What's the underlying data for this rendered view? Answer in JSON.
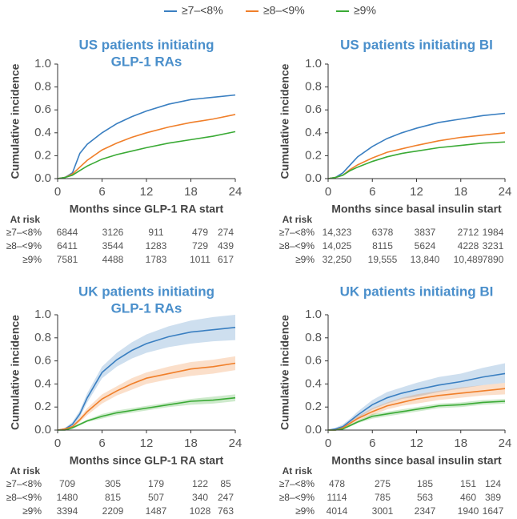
{
  "chart_data": [
    {
      "type": "line",
      "title": [
        "US patients initiating",
        "GLP-1 RAs"
      ],
      "xlabel": "Months since GLP-1 RA start",
      "ylabel": "Cumulative incidence",
      "x": [
        0,
        1,
        2,
        3,
        4,
        6,
        8,
        10,
        12,
        15,
        18,
        21,
        24
      ],
      "xlim": [
        0,
        24
      ],
      "ylim": [
        0,
        1
      ],
      "xticks": [
        0,
        6,
        12,
        18,
        24
      ],
      "yticks": [
        {
          "value": 0,
          "label": "0.0"
        },
        0.2,
        0.4,
        0.6,
        0.8,
        {
          "value": 1,
          "label": "1.0"
        }
      ],
      "series": [
        {
          "name": "≥7–<8%",
          "color": "#3a7fc1",
          "values": [
            0,
            0.01,
            0.05,
            0.22,
            0.3,
            0.4,
            0.48,
            0.54,
            0.59,
            0.65,
            0.69,
            0.71,
            0.73
          ]
        },
        {
          "name": "≥8–<9%",
          "color": "#f07f2a",
          "values": [
            0,
            0.01,
            0.04,
            0.1,
            0.16,
            0.25,
            0.31,
            0.36,
            0.4,
            0.45,
            0.49,
            0.52,
            0.56
          ]
        },
        {
          "name": "≥9%",
          "color": "#3aaa35",
          "values": [
            0,
            0.01,
            0.03,
            0.07,
            0.11,
            0.17,
            0.21,
            0.24,
            0.27,
            0.31,
            0.34,
            0.37,
            0.41
          ]
        }
      ],
      "at_risk_label": "At risk",
      "at_risk": [
        [
          6844,
          3126,
          911,
          479,
          274
        ],
        [
          6411,
          3544,
          1283,
          729,
          439
        ],
        [
          7581,
          4488,
          1783,
          1011,
          617
        ]
      ]
    },
    {
      "type": "line",
      "title": [
        "US patients initiating BI"
      ],
      "xlabel": "Months since basal insulin start",
      "ylabel": "Cumulative incidence",
      "x": [
        0,
        1,
        2,
        3,
        4,
        6,
        8,
        10,
        12,
        15,
        18,
        21,
        24
      ],
      "xlim": [
        0,
        24
      ],
      "ylim": [
        0,
        1
      ],
      "xticks": [
        0,
        6,
        12,
        18,
        24
      ],
      "yticks": [
        {
          "value": 0,
          "label": "0.0"
        },
        0.2,
        0.4,
        0.6,
        0.8,
        {
          "value": 1,
          "label": "1.0"
        }
      ],
      "series": [
        {
          "name": "≥7–<8%",
          "color": "#3a7fc1",
          "values": [
            0,
            0.01,
            0.05,
            0.12,
            0.19,
            0.28,
            0.35,
            0.4,
            0.44,
            0.49,
            0.52,
            0.55,
            0.57
          ]
        },
        {
          "name": "≥8–<9%",
          "color": "#f07f2a",
          "values": [
            0,
            0.01,
            0.03,
            0.08,
            0.12,
            0.18,
            0.23,
            0.26,
            0.29,
            0.33,
            0.36,
            0.38,
            0.4
          ]
        },
        {
          "name": "≥9%",
          "color": "#3aaa35",
          "values": [
            0,
            0.01,
            0.03,
            0.07,
            0.1,
            0.15,
            0.19,
            0.22,
            0.24,
            0.27,
            0.29,
            0.31,
            0.32
          ]
        }
      ],
      "at_risk_label": "At risk",
      "at_risk": [
        [
          14323,
          6378,
          3837,
          2712,
          1984
        ],
        [
          14025,
          8115,
          5624,
          4228,
          3231
        ],
        [
          32250,
          19555,
          13840,
          10489,
          7890
        ]
      ],
      "at_risk_labels": [
        [
          "14,323",
          "6378",
          "3837",
          "2712",
          "1984"
        ],
        [
          "14,025",
          "8115",
          "5624",
          "4228",
          "3231"
        ],
        [
          "32,250",
          "19,555",
          "13,840",
          "10,489",
          "7890"
        ]
      ]
    },
    {
      "type": "line",
      "title": [
        "UK patients initiating",
        "GLP-1 RAs"
      ],
      "xlabel": "Months since GLP-1 RA start",
      "ylabel": "Cumulative incidence",
      "x": [
        0,
        1,
        2,
        3,
        4,
        6,
        8,
        10,
        12,
        15,
        18,
        21,
        24
      ],
      "xlim": [
        0,
        24
      ],
      "ylim": [
        0,
        1
      ],
      "xticks": [
        0,
        6,
        12,
        18,
        24
      ],
      "yticks": [
        {
          "value": 0,
          "label": "0.0"
        },
        0.2,
        0.4,
        0.6,
        0.8,
        {
          "value": 1,
          "label": "1.0"
        }
      ],
      "series": [
        {
          "name": "≥7–<8%",
          "color": "#3a7fc1",
          "values": [
            0,
            0.01,
            0.05,
            0.14,
            0.28,
            0.5,
            0.61,
            0.69,
            0.75,
            0.81,
            0.85,
            0.87,
            0.89
          ],
          "lower": [
            0,
            0,
            0.03,
            0.11,
            0.24,
            0.45,
            0.55,
            0.62,
            0.67,
            0.72,
            0.75,
            0.77,
            0.78
          ],
          "upper": [
            0,
            0.02,
            0.07,
            0.17,
            0.32,
            0.55,
            0.67,
            0.76,
            0.83,
            0.9,
            0.95,
            0.98,
            1
          ]
        },
        {
          "name": "≥8–<9%",
          "color": "#f07f2a",
          "values": [
            0,
            0.01,
            0.03,
            0.09,
            0.16,
            0.27,
            0.34,
            0.4,
            0.45,
            0.49,
            0.53,
            0.55,
            0.58
          ],
          "lower": [
            0,
            0,
            0.02,
            0.07,
            0.13,
            0.23,
            0.3,
            0.35,
            0.4,
            0.44,
            0.47,
            0.49,
            0.52
          ],
          "upper": [
            0,
            0.02,
            0.04,
            0.11,
            0.19,
            0.31,
            0.38,
            0.45,
            0.5,
            0.55,
            0.59,
            0.61,
            0.64
          ]
        },
        {
          "name": "≥9%",
          "color": "#3aaa35",
          "values": [
            0,
            0,
            0.02,
            0.05,
            0.08,
            0.12,
            0.15,
            0.17,
            0.19,
            0.22,
            0.25,
            0.26,
            0.28
          ],
          "lower": [
            0,
            0,
            0.01,
            0.04,
            0.07,
            0.1,
            0.13,
            0.15,
            0.17,
            0.2,
            0.22,
            0.23,
            0.25
          ],
          "upper": [
            0,
            0.01,
            0.03,
            0.06,
            0.09,
            0.14,
            0.17,
            0.19,
            0.21,
            0.24,
            0.27,
            0.29,
            0.31
          ]
        }
      ],
      "at_risk_label": "At risk",
      "at_risk": [
        [
          709,
          305,
          179,
          122,
          85
        ],
        [
          1480,
          815,
          507,
          340,
          247
        ],
        [
          3394,
          2209,
          1487,
          1028,
          763
        ]
      ]
    },
    {
      "type": "line",
      "title": [
        "UK patients initiating BI"
      ],
      "xlabel": "Months since basal insulin start",
      "ylabel": "Cumulative incidence",
      "x": [
        0,
        1,
        2,
        3,
        4,
        6,
        8,
        10,
        12,
        15,
        18,
        21,
        24
      ],
      "xlim": [
        0,
        24
      ],
      "ylim": [
        0,
        1
      ],
      "xticks": [
        0,
        6,
        12,
        18,
        24
      ],
      "yticks": [
        {
          "value": 0,
          "label": "0.0"
        },
        0.2,
        0.4,
        0.6,
        0.8,
        {
          "value": 1,
          "label": "1.0"
        }
      ],
      "series": [
        {
          "name": "≥7–<8%",
          "color": "#3a7fc1",
          "values": [
            0,
            0.01,
            0.03,
            0.08,
            0.13,
            0.22,
            0.28,
            0.32,
            0.35,
            0.39,
            0.42,
            0.46,
            0.49
          ],
          "lower": [
            0,
            0,
            0.02,
            0.06,
            0.1,
            0.18,
            0.23,
            0.27,
            0.29,
            0.33,
            0.36,
            0.39,
            0.41
          ],
          "upper": [
            0,
            0.02,
            0.05,
            0.1,
            0.16,
            0.26,
            0.33,
            0.37,
            0.41,
            0.46,
            0.49,
            0.54,
            0.58
          ]
        },
        {
          "name": "≥8–<9%",
          "color": "#f07f2a",
          "values": [
            0,
            0,
            0.02,
            0.06,
            0.1,
            0.16,
            0.21,
            0.24,
            0.27,
            0.3,
            0.32,
            0.34,
            0.36
          ],
          "lower": [
            0,
            0,
            0.01,
            0.04,
            0.08,
            0.13,
            0.18,
            0.21,
            0.23,
            0.26,
            0.28,
            0.3,
            0.31
          ],
          "upper": [
            0,
            0.01,
            0.03,
            0.08,
            0.12,
            0.19,
            0.24,
            0.28,
            0.31,
            0.34,
            0.37,
            0.39,
            0.41
          ]
        },
        {
          "name": "≥9%",
          "color": "#3aaa35",
          "values": [
            0,
            0,
            0.01,
            0.04,
            0.07,
            0.12,
            0.14,
            0.16,
            0.18,
            0.21,
            0.22,
            0.24,
            0.25
          ],
          "lower": [
            0,
            0,
            0.01,
            0.03,
            0.06,
            0.1,
            0.12,
            0.14,
            0.16,
            0.19,
            0.2,
            0.22,
            0.23
          ],
          "upper": [
            0,
            0.01,
            0.02,
            0.05,
            0.08,
            0.14,
            0.16,
            0.18,
            0.2,
            0.23,
            0.24,
            0.26,
            0.27
          ]
        }
      ],
      "at_risk_label": "At risk",
      "at_risk": [
        [
          478,
          275,
          185,
          151,
          124
        ],
        [
          1114,
          785,
          563,
          460,
          389
        ],
        [
          4014,
          3001,
          2347,
          1940,
          1647
        ]
      ]
    }
  ]
}
